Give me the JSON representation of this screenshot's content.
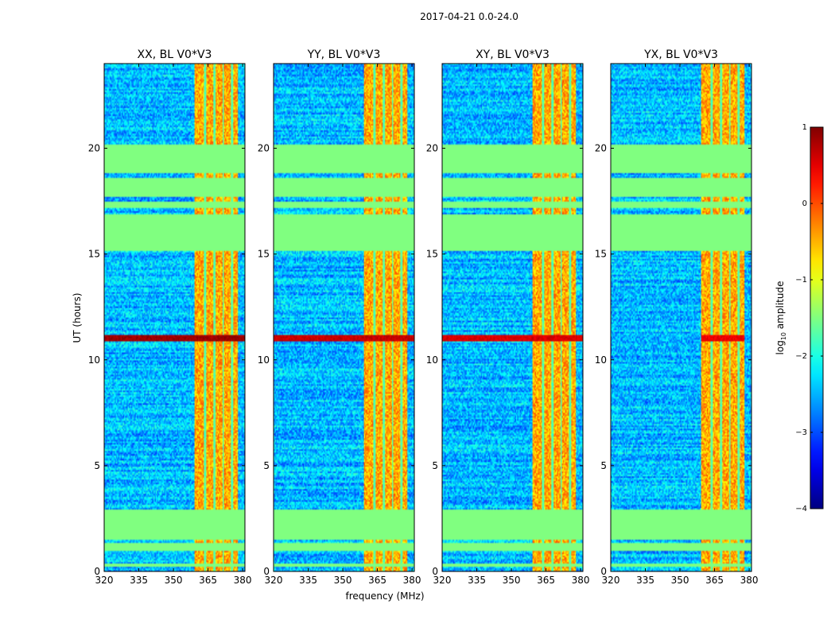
{
  "figure": {
    "suptitle": "2017-04-21 0.0-24.0",
    "xlabel": "frequency (MHz)",
    "ylabel": "UT (hours)",
    "colorbar": {
      "label_prefix": "log",
      "label_sub": "10",
      "label_suffix": " amplitude",
      "ticks": [
        1,
        0,
        -1,
        -2,
        -3,
        -4
      ],
      "range": [
        -4,
        1
      ]
    }
  },
  "chart_data": [
    {
      "type": "heatmap",
      "title": "XX, BL V0*V3",
      "x_range": [
        320,
        381
      ],
      "y_range": [
        0,
        24
      ],
      "xticks": [
        "320",
        "335",
        "350",
        "365",
        "380"
      ],
      "xtick_values": [
        320,
        335,
        350,
        365,
        380
      ],
      "yticks": [
        "0",
        "5",
        "10",
        "15",
        "20"
      ],
      "ytick_values": [
        0,
        5,
        10,
        15,
        20
      ],
      "flagged_hours": [
        [
          0.25,
          0.4
        ],
        [
          1.0,
          1.35
        ],
        [
          1.5,
          2.95
        ],
        [
          15.15,
          16.9
        ],
        [
          17.15,
          17.5
        ],
        [
          17.7,
          18.6
        ],
        [
          18.8,
          20.2
        ]
      ],
      "bright_band_mhz": [
        359,
        378
      ],
      "burst_hours": [
        10.9,
        11.2
      ],
      "burst_level": 1.0,
      "burst_extent": "full"
    },
    {
      "type": "heatmap",
      "title": "YY, BL V0*V3",
      "x_range": [
        320,
        381
      ],
      "y_range": [
        0,
        24
      ],
      "xticks": [
        "320",
        "335",
        "350",
        "365",
        "380"
      ],
      "xtick_values": [
        320,
        335,
        350,
        365,
        380
      ],
      "yticks": [
        "0",
        "5",
        "10",
        "15",
        "20"
      ],
      "ytick_values": [
        0,
        5,
        10,
        15,
        20
      ],
      "flagged_hours": [
        [
          0.25,
          0.4
        ],
        [
          1.0,
          1.35
        ],
        [
          1.5,
          2.95
        ],
        [
          15.15,
          16.9
        ],
        [
          17.15,
          17.5
        ],
        [
          17.7,
          18.6
        ],
        [
          18.8,
          20.2
        ]
      ],
      "bright_band_mhz": [
        359,
        378
      ],
      "burst_hours": [
        10.9,
        11.2
      ],
      "burst_level": 0.8,
      "burst_extent": "full"
    },
    {
      "type": "heatmap",
      "title": "XY, BL V0*V3",
      "x_range": [
        320,
        381
      ],
      "y_range": [
        0,
        24
      ],
      "xticks": [
        "320",
        "335",
        "350",
        "365",
        "380"
      ],
      "xtick_values": [
        320,
        335,
        350,
        365,
        380
      ],
      "yticks": [
        "0",
        "5",
        "10",
        "15",
        "20"
      ],
      "ytick_values": [
        0,
        5,
        10,
        15,
        20
      ],
      "flagged_hours": [
        [
          0.25,
          0.4
        ],
        [
          1.0,
          1.35
        ],
        [
          1.5,
          2.95
        ],
        [
          15.15,
          16.9
        ],
        [
          17.15,
          17.5
        ],
        [
          17.7,
          18.6
        ],
        [
          18.8,
          20.2
        ]
      ],
      "bright_band_mhz": [
        359,
        378
      ],
      "burst_hours": [
        10.9,
        11.2
      ],
      "burst_level": 0.7,
      "burst_extent": "full"
    },
    {
      "type": "heatmap",
      "title": "YX, BL V0*V3",
      "x_range": [
        320,
        381
      ],
      "y_range": [
        0,
        24
      ],
      "xticks": [
        "320",
        "335",
        "350",
        "365",
        "380"
      ],
      "xtick_values": [
        320,
        335,
        350,
        365,
        380
      ],
      "yticks": [
        "0",
        "5",
        "10",
        "15",
        "20"
      ],
      "ytick_values": [
        0,
        5,
        10,
        15,
        20
      ],
      "flagged_hours": [
        [
          0.25,
          0.4
        ],
        [
          1.0,
          1.35
        ],
        [
          1.5,
          2.95
        ],
        [
          15.15,
          16.9
        ],
        [
          17.15,
          17.5
        ],
        [
          17.7,
          18.6
        ],
        [
          18.8,
          20.2
        ]
      ],
      "bright_band_mhz": [
        359,
        378
      ],
      "burst_hours": [
        10.9,
        11.2
      ],
      "burst_level": 0.6,
      "burst_extent": "band"
    }
  ]
}
